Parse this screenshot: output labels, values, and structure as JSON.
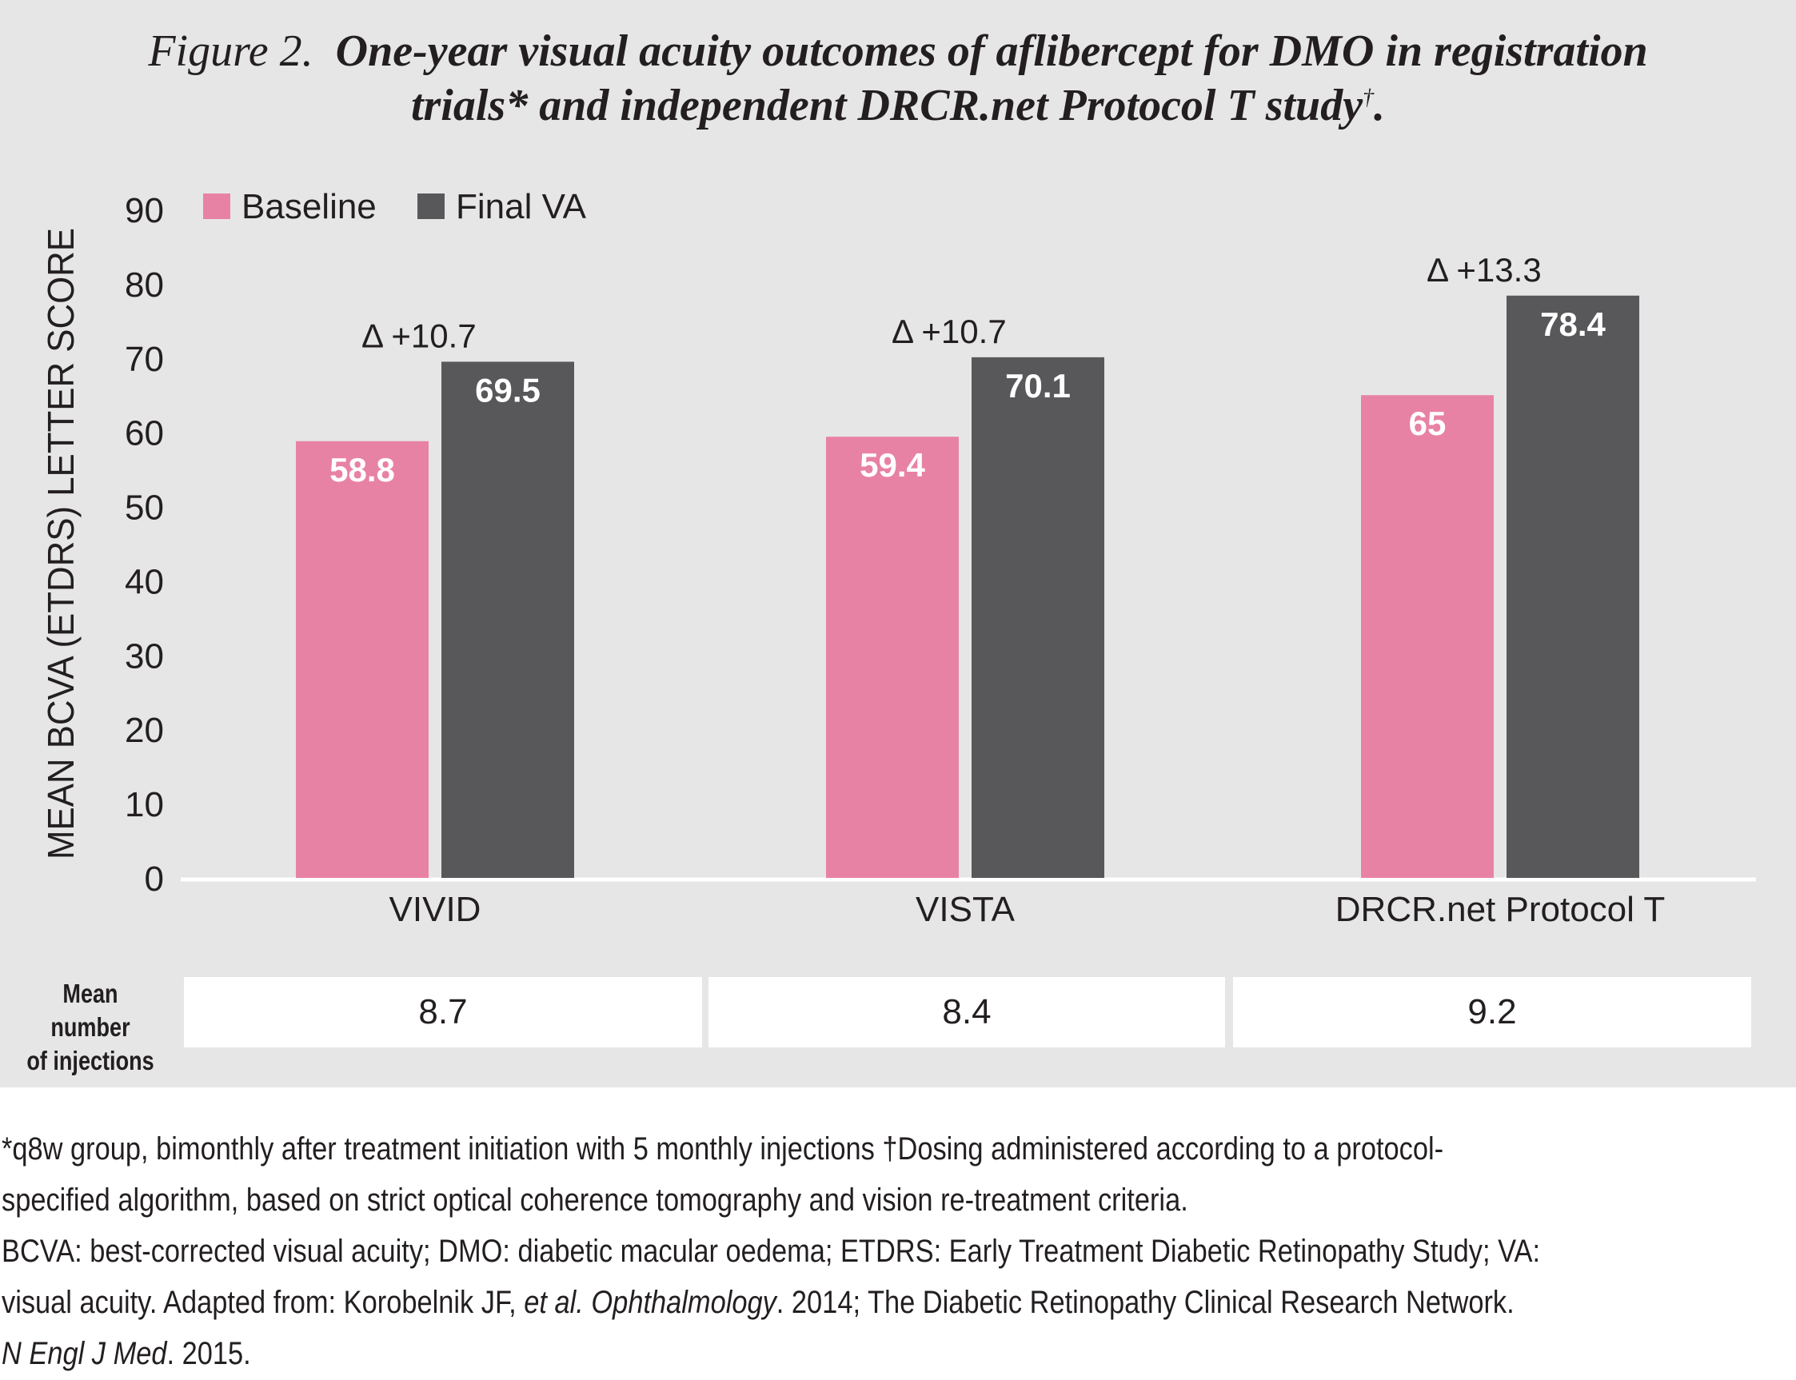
{
  "title": {
    "prefix": "Figure 2.",
    "line1": "One-year visual acuity outcomes of aflibercept for DMO in registration",
    "line2": "trials* and independent DRCR.net Protocol T study",
    "dagger": "†",
    "end": "."
  },
  "colors": {
    "baseline": "#e882a5",
    "final": "#58585a",
    "panel": "#e6e6e6",
    "text": "#231f20"
  },
  "chart_data": {
    "type": "bar",
    "title": "One-year visual acuity outcomes of aflibercept for DMO in registration trials* and independent DRCR.net Protocol T study†.",
    "ylabel": "MEAN BCVA (ETDRS) LETTER SCORE",
    "xlabel": "",
    "ylim": [
      0,
      90
    ],
    "yticks": [
      "0",
      "10",
      "20",
      "30",
      "40",
      "50",
      "60",
      "70",
      "80",
      "90"
    ],
    "categories": [
      "VIVID",
      "VISTA",
      "DRCR.net Protocol T"
    ],
    "series": [
      {
        "name": "Baseline",
        "values": [
          58.8,
          59.4,
          65
        ],
        "labels": [
          "58.8",
          "59.4",
          "65"
        ]
      },
      {
        "name": "Final VA",
        "values": [
          69.5,
          70.1,
          78.4
        ],
        "labels": [
          "69.5",
          "70.1",
          "78.4"
        ]
      }
    ],
    "deltas": [
      "Δ +10.7",
      "Δ +10.7",
      "Δ +13.3"
    ],
    "legend": "top-left"
  },
  "injections": {
    "label_line1": "Mean number",
    "label_line2": "of injections",
    "values": [
      "8.7",
      "8.4",
      "9.2"
    ]
  },
  "footnotes": {
    "line1": "*q8w group, bimonthly after treatment initiation with 5 monthly injections †Dosing administered according to a protocol-",
    "line2": "specified algorithm, based on strict optical coherence tomography and vision re-treatment criteria.",
    "line3": "BCVA: best-corrected visual acuity; DMO: diabetic macular oedema; ETDRS: Early Treatment Diabetic Retinopathy Study; VA:",
    "line4_a": "visual acuity.  Adapted from: Korobelnik JF, ",
    "line4_b": "et al. Ophthalmology",
    "line4_c": ". 2014; The Diabetic Retinopathy Clinical Research Network.",
    "line5_a": "N Engl J Med",
    "line5_b": ". 2015."
  }
}
